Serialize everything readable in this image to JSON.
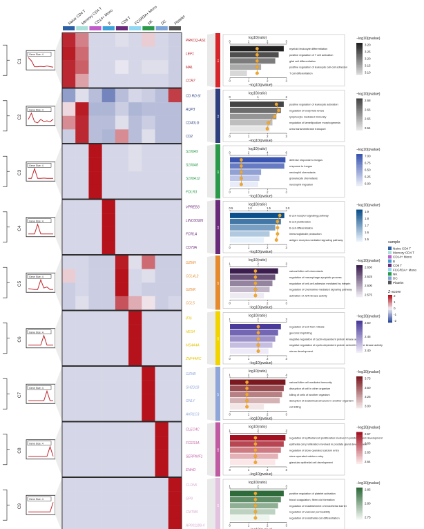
{
  "samples": [
    "Naive CD4 T",
    "Memory CD4 T",
    "CD14+ Mono",
    "B",
    "CD8 T",
    "FCGR3A+ Mono",
    "NK",
    "DC",
    "Platelet"
  ],
  "sample_colors": [
    "#2b5fa6",
    "#a9e0d9",
    "#c05bc9",
    "#3ea1d9",
    "#6a2a7a",
    "#8fd7f2",
    "#2a9a4a",
    "#7ea3d6",
    "#555555"
  ],
  "legend": {
    "sample_title": "sample",
    "zscore_title": "Z-score",
    "zscore_ticks": [
      "2",
      "1",
      "0",
      "-1",
      "-2"
    ]
  },
  "heatmap_colors": {
    "high": "#b5121b",
    "mid": "#f2eef4",
    "low": "#2f4d9e"
  },
  "trend_box_label": "Gene Size: 4",
  "gene_text_xlabel": "log10(ratio)",
  "bar_xlabel": "−log10(pvalue)",
  "bar_legend_title": "−log10(pvalue)",
  "clusters": [
    {
      "id": "C1",
      "color": "#d7262b",
      "gene_color": "#b5121b",
      "genes": [
        "PRKCQ-AS1",
        "LEF1",
        "MAL",
        "CCR7"
      ],
      "heat": [
        [
          1.8,
          1.0,
          -0.3,
          -0.3,
          -0.2,
          -0.3,
          0.3,
          -0.3,
          -0.4
        ],
        [
          1.9,
          1.2,
          -0.3,
          -0.3,
          -0.3,
          -0.3,
          -0.3,
          -0.3,
          -0.4
        ],
        [
          1.8,
          1.3,
          -0.3,
          -0.3,
          -0.1,
          -0.3,
          -0.2,
          -0.2,
          -0.4
        ],
        [
          1.8,
          0.7,
          -0.3,
          -0.3,
          -0.3,
          -0.3,
          -0.3,
          -0.3,
          -0.4
        ]
      ],
      "terms": [
        "myeloid leukocyte differentiation",
        "positive regulation of T cell activation",
        "glial cell differentiation",
        "positive regulation of leukocyte cell-cell adhesion",
        "T cell differentiation"
      ],
      "ratio_ticks": [
        "0",
        "1",
        "2",
        "3"
      ],
      "legend_ticks": [
        "3.20",
        "3.25",
        "3.20",
        "3.15",
        "3.10"
      ],
      "palette": [
        "#202020",
        "#d8d8d8"
      ],
      "bars": [
        0.95,
        0.86,
        0.8,
        0.55,
        0.3
      ],
      "dots": [
        0.48,
        0.48,
        0.48,
        0.48,
        0.48
      ]
    },
    {
      "id": "C2",
      "color": "#2d3f7d",
      "gene_color": "#2d3f7d",
      "genes": [
        "CD RD 6I",
        "AQP3",
        "CD40LG",
        "CD2"
      ],
      "heat": [
        [
          -1.0,
          -0.2,
          -0.6,
          -1.3,
          -0.6,
          -0.3,
          -0.4,
          -0.6,
          1.6
        ],
        [
          0.2,
          1.9,
          -0.7,
          -0.7,
          -0.4,
          -0.7,
          -0.6,
          -0.6,
          -0.6
        ],
        [
          0.9,
          1.8,
          -0.6,
          -0.6,
          -0.2,
          -0.6,
          -0.4,
          -0.6,
          -0.6
        ],
        [
          -0.4,
          1.8,
          -0.6,
          -0.7,
          0.9,
          -0.6,
          -0.2,
          -0.6,
          -0.6
        ]
      ],
      "terms": [
        "positive regulation of leukocyte activation",
        "regulation of body fluid levels",
        "lymphocyte mediated immunity",
        "regulation of lamellipodium morphogenesis",
        "urea transmembrane transport"
      ],
      "ratio_ticks": [
        "0",
        "1",
        "2"
      ],
      "legend_ticks": [
        "2.68",
        "2.66",
        "2.65",
        "2.64"
      ],
      "palette": [
        "#444444",
        "#e6e6e6"
      ],
      "bars": [
        0.95,
        0.9,
        0.82,
        0.75,
        0.7
      ],
      "dots": [
        0.82,
        0.86,
        0.79,
        0.68,
        0.66
      ]
    },
    {
      "id": "C3",
      "color": "#2a9a4a",
      "gene_color": "#2a9a4a",
      "genes": [
        "S100A9",
        "S100A8",
        "S100A12",
        "FOLR3"
      ],
      "heat": [
        [
          -0.3,
          -0.3,
          2.0,
          -0.3,
          -0.3,
          -0.2,
          -0.3,
          -0.3,
          -0.3
        ],
        [
          -0.3,
          -0.3,
          2.0,
          -0.3,
          -0.3,
          -0.2,
          -0.3,
          -0.3,
          -0.3
        ],
        [
          -0.3,
          -0.3,
          2.0,
          -0.3,
          -0.3,
          -0.3,
          -0.3,
          -0.3,
          -0.3
        ],
        [
          -0.3,
          -0.3,
          2.0,
          -0.3,
          -0.3,
          -0.3,
          -0.3,
          -0.3,
          -0.3
        ]
      ],
      "terms": [
        "defense response to fungus",
        "response to fungus",
        "neutrophil chemotaxis",
        "granulocyte chemotaxis",
        "neutrophil migration"
      ],
      "ratio_ticks": [
        "0",
        "2",
        "4",
        "6"
      ],
      "legend_ticks": [
        "7.00",
        "6.75",
        "6.50",
        "6.25",
        "6.00"
      ],
      "palette": [
        "#3a55b0",
        "#e8ecf8"
      ],
      "bars": [
        0.98,
        0.96,
        0.55,
        0.52,
        0.5
      ],
      "dots": [
        0.2,
        0.2,
        0.2,
        0.2,
        0.2
      ]
    },
    {
      "id": "C4",
      "color": "#6a2a7a",
      "gene_color": "#6a2a7a",
      "genes": [
        "VPREB3",
        "LINC00926",
        "FCRLA",
        "CD79A"
      ],
      "heat": [
        [
          -0.3,
          -0.3,
          -0.3,
          2.0,
          -0.3,
          -0.3,
          -0.3,
          -0.3,
          -0.3
        ],
        [
          -0.3,
          -0.3,
          -0.3,
          2.0,
          -0.3,
          -0.3,
          -0.3,
          -0.3,
          -0.3
        ],
        [
          -0.3,
          -0.3,
          -0.3,
          2.0,
          -0.3,
          -0.3,
          -0.3,
          -0.3,
          -0.3
        ],
        [
          -0.3,
          -0.3,
          -0.3,
          2.0,
          -0.3,
          -0.3,
          -0.3,
          -0.3,
          -0.3
        ]
      ],
      "terms": [
        "B cell receptor signaling pathway",
        "B cell proliferation",
        "B cell differentiation",
        "immunoglobulin production",
        "antigen receptor-mediated signaling pathway"
      ],
      "ratio_ticks": [
        "0.5",
        "1.0",
        "1.5",
        "2.0"
      ],
      "legend_ticks": [
        "1.9",
        "1.8",
        "1.7",
        "1.6",
        "1.5"
      ],
      "palette": [
        "#0c4f8a",
        "#e6f1fb"
      ],
      "bars": [
        0.96,
        0.9,
        0.8,
        0.7,
        0.6
      ],
      "dots": [
        0.88,
        0.84,
        0.84,
        0.84,
        0.82
      ]
    },
    {
      "id": "C5",
      "color": "#e58a2d",
      "gene_color": "#e58a2d",
      "genes": [
        "GZMH",
        "CCL4L2",
        "GZMK",
        "CCL5"
      ],
      "heat": [
        [
          -0.3,
          -0.3,
          -0.4,
          -0.4,
          1.9,
          -0.2,
          1.2,
          -0.4,
          -0.4
        ],
        [
          0.3,
          -0.3,
          -0.4,
          -0.4,
          2.0,
          -0.3,
          -0.2,
          -0.4,
          -0.4
        ],
        [
          -0.4,
          -0.3,
          -0.4,
          -0.4,
          2.0,
          -0.3,
          -0.4,
          -0.4,
          -0.4
        ],
        [
          -0.4,
          -0.2,
          -0.4,
          -0.4,
          1.4,
          0.6,
          0.1,
          -0.4,
          -0.3
        ]
      ],
      "terms": [
        "natural killer cell chemotaxis",
        "regulation of macrophage apoptotic process",
        "regulation of cell-cell adhesion mediated by integrin",
        "regulation of chemokine-mediated signaling pathway",
        "activation of JUN kinase activity"
      ],
      "ratio_ticks": [
        "1",
        "2",
        "3"
      ],
      "legend_ticks": [
        "2.650",
        "2.625",
        "2.600",
        "2.575"
      ],
      "palette": [
        "#3b1d4e",
        "#eeeaf2"
      ],
      "bars": [
        0.85,
        0.8,
        0.75,
        0.7,
        0.6
      ],
      "dots": [
        0.45,
        0.45,
        0.45,
        0.45,
        0.45
      ]
    },
    {
      "id": "C6",
      "color": "#f2d500",
      "gene_color": "#e2c400",
      "genes": [
        "IFI6",
        "HES4",
        "MS4A4A",
        "ZNF44RC"
      ],
      "heat": [
        [
          -0.3,
          -0.3,
          -0.3,
          -0.3,
          -0.3,
          2.0,
          -0.3,
          -0.3,
          -0.3
        ],
        [
          -0.3,
          -0.3,
          -0.3,
          -0.3,
          -0.3,
          2.0,
          -0.3,
          -0.3,
          -0.3
        ],
        [
          -0.3,
          -0.3,
          -0.3,
          -0.3,
          -0.3,
          2.0,
          -0.3,
          -0.3,
          -0.3
        ],
        [
          -0.3,
          -0.3,
          -0.3,
          -0.3,
          -0.3,
          2.0,
          -0.3,
          -0.3,
          -0.3
        ]
      ],
      "terms": [
        "regulation of exit from mitosis",
        "genomic imprinting",
        "negative regulation of cyclin-dependent protein kinase activity",
        "negative regulation of cyclin-dependent protein serine/threonine kinase activity",
        "uterus development"
      ],
      "ratio_ticks": [
        "1",
        "2",
        "3"
      ],
      "legend_ticks": [
        "2.50",
        "2.45",
        "2.40"
      ],
      "palette": [
        "#4a3a9a",
        "#eeeaf8"
      ],
      "bars": [
        0.9,
        0.85,
        0.8,
        0.75,
        0.68
      ],
      "dots": [
        0.5,
        0.5,
        0.5,
        0.5,
        0.5
      ]
    },
    {
      "id": "C7",
      "color": "#8ea7d8",
      "gene_color": "#8ea7d8",
      "genes": [
        "GZMB",
        "SH2D1B",
        "GNLY",
        "AKR1C3"
      ],
      "heat": [
        [
          -0.3,
          -0.3,
          -0.3,
          -0.3,
          -0.3,
          -0.3,
          2.0,
          -0.3,
          -0.3
        ],
        [
          -0.3,
          -0.3,
          -0.3,
          -0.3,
          -0.3,
          -0.3,
          2.0,
          -0.3,
          -0.3
        ],
        [
          -0.3,
          -0.3,
          -0.3,
          -0.3,
          -0.3,
          -0.3,
          2.0,
          -0.3,
          -0.3
        ],
        [
          -0.3,
          -0.3,
          -0.3,
          -0.3,
          -0.3,
          -0.3,
          2.0,
          -0.3,
          -0.3
        ]
      ],
      "terms": [
        "natural killer cell mediated immunity",
        "disruption of cell in other organism",
        "killing of cells of another organism",
        "disruption of anatomical structure in another organism",
        "cell killing"
      ],
      "ratio_ticks": [
        "1",
        "2",
        "3",
        "4"
      ],
      "legend_ticks": [
        "3.75",
        "3.50",
        "3.25",
        "3.00"
      ],
      "palette": [
        "#7a1a20",
        "#f3e6e6"
      ],
      "bars": [
        0.98,
        0.95,
        0.92,
        0.88,
        0.6
      ],
      "dots": [
        0.3,
        0.3,
        0.3,
        0.3,
        0.3
      ]
    },
    {
      "id": "C8",
      "color": "#c05ba3",
      "gene_color": "#c05ba3",
      "genes": [
        "CLEC4C",
        "FCER1A",
        "SERPINF1",
        "ENHO"
      ],
      "heat": [
        [
          -0.3,
          -0.3,
          -0.3,
          -0.3,
          -0.3,
          -0.3,
          -0.3,
          2.0,
          -0.3
        ],
        [
          -0.3,
          -0.3,
          -0.3,
          -0.3,
          -0.3,
          -0.3,
          -0.3,
          2.0,
          -0.3
        ],
        [
          -0.3,
          -0.3,
          -0.3,
          -0.3,
          -0.3,
          -0.3,
          -0.3,
          2.0,
          -0.3
        ],
        [
          -0.3,
          -0.3,
          -0.3,
          -0.3,
          -0.3,
          -0.3,
          -0.3,
          2.0,
          -0.3
        ]
      ],
      "terms": [
        "regulation of epithelial cell proliferation involved in prostate gland development",
        "epithelial cell proliferation involved in prostate gland development",
        "regulation of store-operated calcium entry",
        "store-operated calcium entry",
        "glandular epithelial cell development"
      ],
      "ratio_ticks": [
        "1",
        "2",
        "3"
      ],
      "legend_ticks": [
        "2.67",
        "2.66",
        "2.65",
        "2.64"
      ],
      "palette": [
        "#a01020",
        "#fbe7e8"
      ],
      "bars": [
        0.98,
        0.95,
        0.9,
        0.85,
        0.8
      ],
      "dots": [
        0.45,
        0.45,
        0.45,
        0.45,
        0.45
      ]
    },
    {
      "id": "C9",
      "color": "#e2c2de",
      "gene_color": "#d6a9d0",
      "genes": [
        "CLDN5",
        "GP9",
        "CMTM5",
        "AP001189.4"
      ],
      "heat": [
        [
          -0.3,
          -0.3,
          -0.3,
          -0.3,
          -0.3,
          -0.3,
          -0.3,
          -0.3,
          2.0
        ],
        [
          -0.3,
          -0.3,
          -0.3,
          -0.3,
          -0.3,
          -0.3,
          -0.3,
          -0.3,
          2.0
        ],
        [
          -0.3,
          -0.3,
          -0.3,
          -0.3,
          -0.3,
          -0.3,
          -0.3,
          -0.3,
          2.0
        ],
        [
          -0.3,
          -0.3,
          -0.3,
          -0.3,
          -0.3,
          -0.3,
          -0.3,
          -0.3,
          2.0
        ]
      ],
      "terms": [
        "positive regulation of platelet activation",
        "blood coagulation, fibrin clot formation",
        "regulation of establishment of endothelial barrier",
        "regulation of vascular permeability",
        "regulation of endothelial cell differentiation"
      ],
      "ratio_ticks": [
        "1",
        "2",
        "3"
      ],
      "legend_ticks": [
        "2.85",
        "2.80",
        "2.75"
      ],
      "palette": [
        "#2f6a3a",
        "#eef4ee"
      ],
      "bars": [
        0.95,
        0.9,
        0.85,
        0.8,
        0.7
      ],
      "dots": [
        0.45,
        0.45,
        0.45,
        0.45,
        0.45
      ]
    }
  ],
  "profile_peaks": [
    [
      0,
      0,
      0,
      0,
      0,
      0,
      0,
      0,
      0
    ]
  ]
}
